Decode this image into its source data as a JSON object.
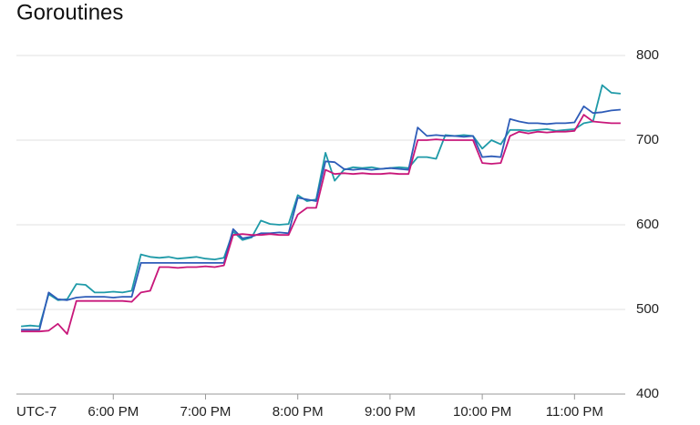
{
  "chart_data": {
    "type": "line",
    "title": "Goroutines",
    "timezone": "UTC-7",
    "x": [
      17.0,
      17.1,
      17.2,
      17.3,
      17.4,
      17.5,
      17.6,
      17.7,
      17.8,
      17.9,
      18.0,
      18.1,
      18.2,
      18.3,
      18.4,
      18.5,
      18.6,
      18.7,
      18.8,
      18.9,
      19.0,
      19.1,
      19.2,
      19.3,
      19.4,
      19.5,
      19.6,
      19.7,
      19.8,
      19.9,
      20.0,
      20.1,
      20.2,
      20.3,
      20.4,
      20.5,
      20.6,
      20.7,
      20.8,
      20.9,
      21.0,
      21.1,
      21.2,
      21.3,
      21.4,
      21.5,
      21.6,
      21.7,
      21.8,
      21.9,
      22.0,
      22.1,
      22.2,
      22.3,
      22.4,
      22.5,
      22.6,
      22.7,
      22.8,
      22.9,
      23.0,
      23.1,
      23.2,
      23.3,
      23.4,
      23.5
    ],
    "series": [
      {
        "color": "#1f9aa8",
        "values": [
          480,
          481,
          480,
          518,
          511,
          512,
          530,
          529,
          520,
          520,
          521,
          520,
          522,
          565,
          562,
          561,
          562,
          560,
          561,
          562,
          560,
          559,
          561,
          592,
          582,
          585,
          605,
          601,
          600,
          601,
          635,
          628,
          630,
          685,
          652,
          665,
          668,
          667,
          668,
          666,
          667,
          668,
          667,
          680,
          680,
          678,
          706,
          705,
          706,
          705,
          690,
          700,
          695,
          712,
          712,
          711,
          712,
          713,
          711,
          712,
          713,
          720,
          722,
          765,
          756,
          755
        ]
      },
      {
        "color": "#2e5cb8",
        "values": [
          476,
          476,
          476,
          520,
          512,
          511,
          514,
          515,
          515,
          515,
          514,
          515,
          515,
          555,
          555,
          555,
          555,
          555,
          555,
          555,
          555,
          555,
          555,
          595,
          584,
          586,
          590,
          590,
          591,
          590,
          632,
          630,
          628,
          675,
          674,
          666,
          665,
          666,
          665,
          666,
          667,
          666,
          665,
          715,
          705,
          706,
          705,
          705,
          704,
          705,
          680,
          681,
          680,
          725,
          722,
          720,
          720,
          719,
          720,
          720,
          721,
          740,
          732,
          733,
          735,
          736
        ]
      },
      {
        "color": "#c8177a",
        "values": [
          474,
          474,
          474,
          475,
          483,
          471,
          510,
          510,
          510,
          510,
          510,
          510,
          509,
          520,
          522,
          550,
          550,
          549,
          550,
          550,
          551,
          550,
          552,
          588,
          589,
          588,
          588,
          589,
          588,
          588,
          612,
          620,
          620,
          665,
          660,
          661,
          660,
          661,
          660,
          660,
          661,
          660,
          660,
          700,
          700,
          701,
          700,
          700,
          700,
          700,
          673,
          672,
          673,
          705,
          710,
          708,
          710,
          709,
          710,
          710,
          711,
          730,
          722,
          721,
          720,
          720
        ]
      }
    ],
    "xlim": [
      16.95,
      23.55
    ],
    "xticks": [
      {
        "value": 18,
        "label": "6:00 PM"
      },
      {
        "value": 19,
        "label": "7:00 PM"
      },
      {
        "value": 20,
        "label": "8:00 PM"
      },
      {
        "value": 21,
        "label": "9:00 PM"
      },
      {
        "value": 22,
        "label": "10:00 PM"
      },
      {
        "value": 23,
        "label": "11:00 PM"
      }
    ],
    "ylim": [
      400,
      800
    ],
    "yticks": [
      400,
      500,
      600,
      700,
      800
    ],
    "grid": true
  }
}
